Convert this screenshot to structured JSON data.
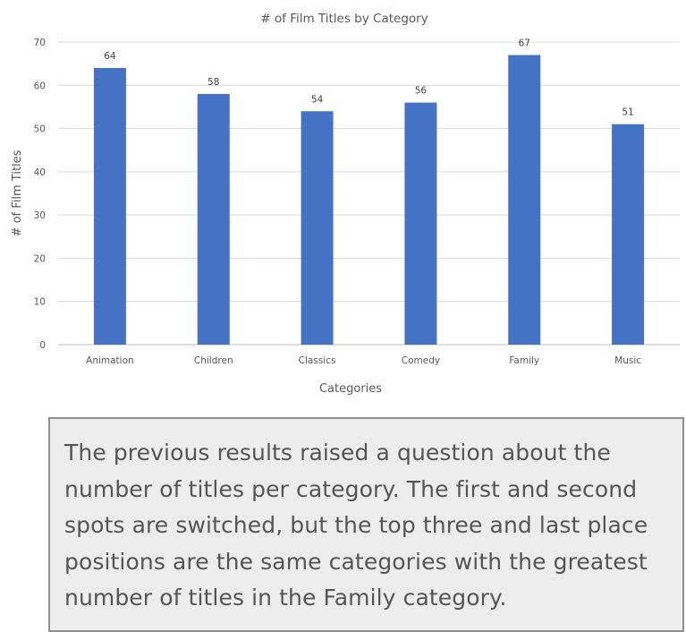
{
  "chart_data": {
    "type": "bar",
    "title": "# of Film Titles by Category",
    "xlabel": "Categories",
    "ylabel": "# of Film Titles",
    "categories": [
      "Animation",
      "Children",
      "Classics",
      "Comedy",
      "Family",
      "Music"
    ],
    "series": [
      {
        "values": [
          64,
          58,
          54,
          56,
          67,
          51
        ]
      }
    ],
    "data_labels": [
      "64",
      "58",
      "54",
      "56",
      "67",
      "51"
    ],
    "ylim": [
      0,
      70
    ],
    "yticks": [
      "0",
      "10",
      "20",
      "30",
      "40",
      "50",
      "60",
      "70"
    ],
    "grid": true,
    "legend": "none",
    "bar_color": "#4472c4",
    "grid_color": "#d9d9d9"
  },
  "commentary": {
    "text": "The previous results raised a question about the number of titles per category. The first and second spots are switched, but the top three and last place positions are the same categories with the greatest number of titles in the Family category."
  }
}
